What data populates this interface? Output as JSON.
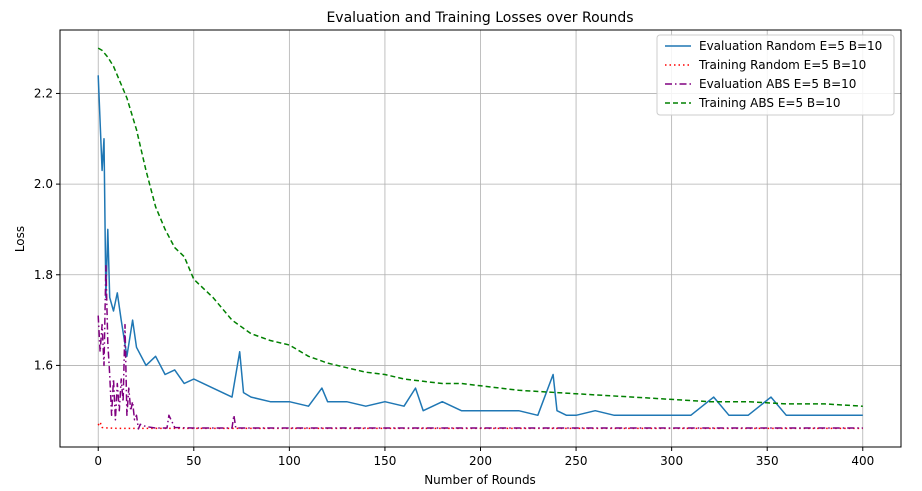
{
  "chart_data": {
    "type": "line",
    "title": "Evaluation and Training Losses over Rounds",
    "xlabel": "Number of Rounds",
    "ylabel": "Loss",
    "xlim": [
      -20,
      420
    ],
    "ylim": [
      1.42,
      2.34
    ],
    "xticks": [
      0,
      50,
      100,
      150,
      200,
      250,
      300,
      350,
      400
    ],
    "yticks": [
      1.6,
      1.8,
      2.0,
      2.2
    ],
    "grid": true,
    "legend_position": "top-right",
    "series": [
      {
        "name": "Evaluation Random E=5 B=10",
        "color": "#1f77b4",
        "style": "solid",
        "x": [
          0,
          2,
          3,
          4,
          5,
          6,
          8,
          10,
          12,
          15,
          18,
          20,
          25,
          30,
          35,
          40,
          45,
          50,
          60,
          70,
          74,
          76,
          80,
          90,
          100,
          110,
          117,
          120,
          130,
          140,
          150,
          160,
          166,
          170,
          180,
          190,
          200,
          210,
          220,
          230,
          238,
          240,
          245,
          250,
          260,
          270,
          280,
          290,
          300,
          310,
          322,
          330,
          340,
          352,
          360,
          370,
          380,
          390,
          400
        ],
        "y": [
          2.24,
          2.03,
          2.1,
          1.75,
          1.9,
          1.75,
          1.72,
          1.76,
          1.7,
          1.62,
          1.7,
          1.64,
          1.6,
          1.62,
          1.58,
          1.59,
          1.56,
          1.57,
          1.55,
          1.53,
          1.63,
          1.54,
          1.53,
          1.52,
          1.52,
          1.51,
          1.55,
          1.52,
          1.52,
          1.51,
          1.52,
          1.51,
          1.55,
          1.5,
          1.52,
          1.5,
          1.5,
          1.5,
          1.5,
          1.49,
          1.58,
          1.5,
          1.49,
          1.49,
          1.5,
          1.49,
          1.49,
          1.49,
          1.49,
          1.49,
          1.53,
          1.49,
          1.49,
          1.53,
          1.49,
          1.49,
          1.49,
          1.49,
          1.49
        ]
      },
      {
        "name": "Training Random E=5 B=10",
        "color": "#ff0000",
        "style": "dotted",
        "x": [
          0,
          1,
          2,
          5,
          10,
          20,
          50,
          100,
          150,
          200,
          250,
          300,
          350,
          400
        ],
        "y": [
          1.468,
          1.475,
          1.463,
          1.462,
          1.461,
          1.461,
          1.461,
          1.461,
          1.461,
          1.461,
          1.461,
          1.461,
          1.461,
          1.461
        ]
      },
      {
        "name": "Evaluation ABS E=5 B=10",
        "color": "#800080",
        "style": "dashdot",
        "x": [
          0,
          1,
          2,
          3,
          4,
          5,
          6,
          7,
          8,
          9,
          10,
          11,
          12,
          13,
          14,
          15,
          16,
          17,
          18,
          19,
          20,
          21,
          22,
          25,
          30,
          36,
          37,
          40,
          50,
          60,
          70,
          71,
          72,
          80,
          100,
          150,
          200,
          250,
          300,
          350,
          400
        ],
        "y": [
          1.71,
          1.63,
          1.69,
          1.6,
          1.82,
          1.65,
          1.58,
          1.49,
          1.57,
          1.48,
          1.56,
          1.5,
          1.57,
          1.52,
          1.69,
          1.49,
          1.55,
          1.5,
          1.52,
          1.48,
          1.49,
          1.46,
          1.47,
          1.465,
          1.462,
          1.462,
          1.49,
          1.463,
          1.462,
          1.462,
          1.462,
          1.49,
          1.462,
          1.462,
          1.462,
          1.462,
          1.462,
          1.462,
          1.462,
          1.462,
          1.462
        ]
      },
      {
        "name": "Training ABS E=5 B=10",
        "color": "#008000",
        "style": "dashed",
        "x": [
          0,
          2,
          5,
          8,
          10,
          15,
          20,
          25,
          30,
          35,
          40,
          45,
          50,
          55,
          60,
          70,
          80,
          90,
          100,
          110,
          120,
          130,
          140,
          150,
          160,
          170,
          180,
          190,
          200,
          220,
          240,
          260,
          280,
          300,
          320,
          340,
          360,
          380,
          400
        ],
        "y": [
          2.3,
          2.295,
          2.28,
          2.26,
          2.24,
          2.19,
          2.12,
          2.03,
          1.95,
          1.9,
          1.86,
          1.84,
          1.79,
          1.77,
          1.75,
          1.7,
          1.67,
          1.655,
          1.645,
          1.62,
          1.605,
          1.595,
          1.585,
          1.58,
          1.57,
          1.565,
          1.56,
          1.56,
          1.555,
          1.545,
          1.54,
          1.535,
          1.53,
          1.525,
          1.52,
          1.52,
          1.515,
          1.515,
          1.51
        ]
      }
    ]
  }
}
